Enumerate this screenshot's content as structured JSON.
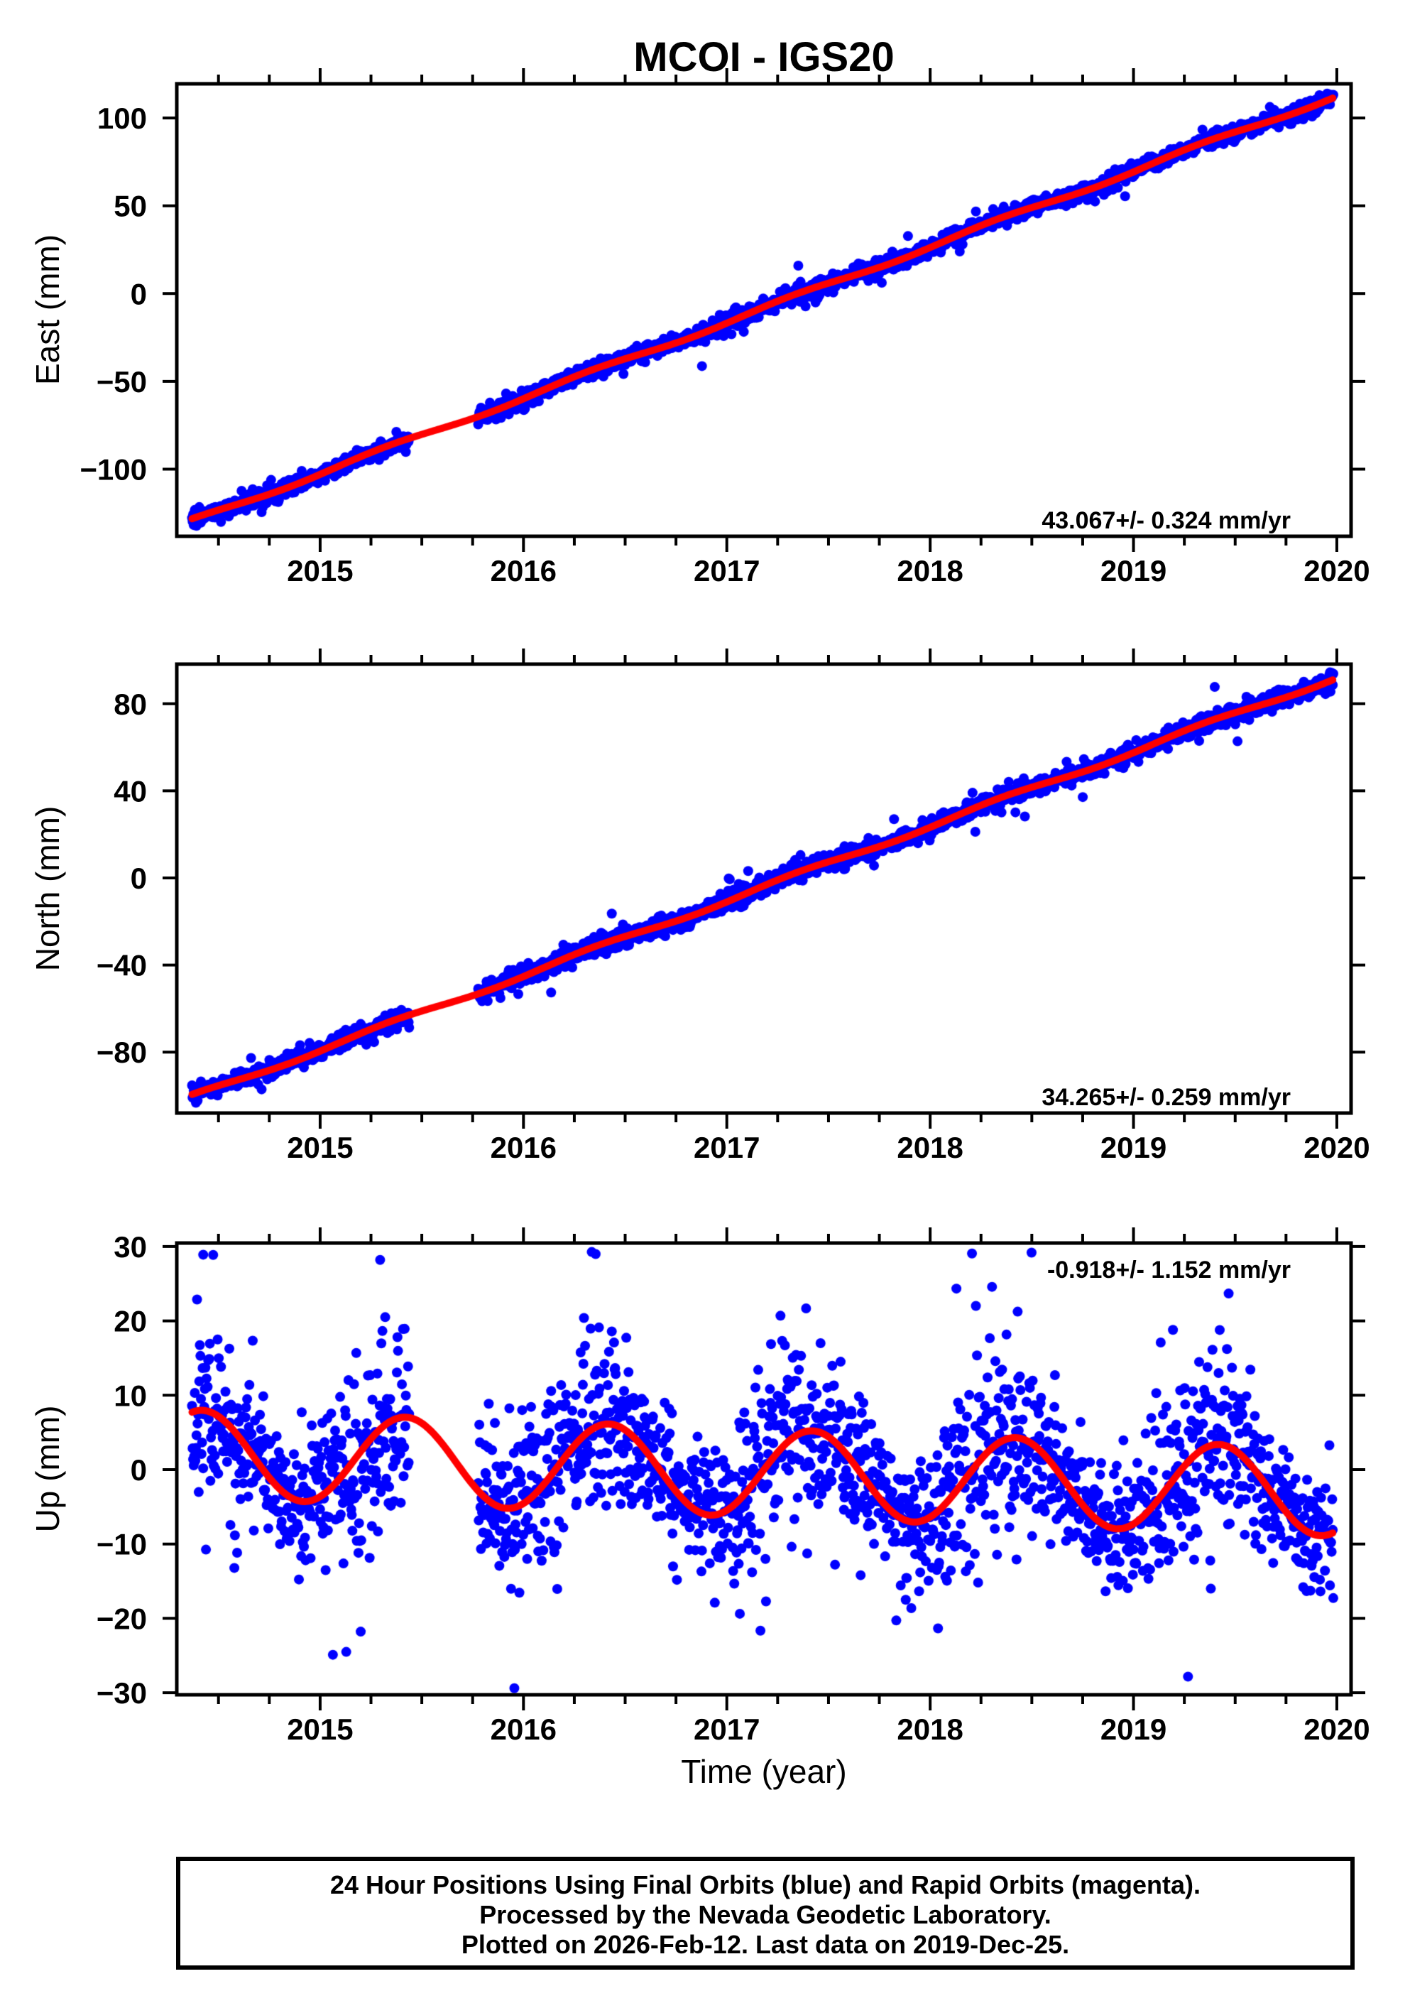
{
  "title": "MCOI - IGS20",
  "colors": {
    "final_orbit_points": "#0000ff",
    "rapid_orbit_points": "#ff00ff",
    "model_curve": "#ff0000",
    "axis": "#000000",
    "background": "#ffffff"
  },
  "x_axis": {
    "label": "Time (year)",
    "tick_values": [
      2015,
      2016,
      2017,
      2018,
      2019,
      2020
    ],
    "tick_labels": [
      "2015",
      "2016",
      "2017",
      "2018",
      "2019",
      "2020"
    ],
    "minor_step": 0.25,
    "range": [
      2014.295,
      2020.07
    ]
  },
  "footer": {
    "lines": [
      "24 Hour Positions Using Final Orbits (blue) and Rapid Orbits (magenta).",
      "Processed by the Nevada Geodetic Laboratory.",
      "Plotted on 2026-Feb-12. Last data on 2019-Dec-25."
    ]
  },
  "chart_data": [
    {
      "type": "scatter",
      "component": "East",
      "ylabel": "East (mm)",
      "rate_label": "43.067+/- 0.324 mm/yr",
      "rate_mm_per_yr": 43.067,
      "rate_sigma_mm_per_yr": 0.324,
      "yticks": [
        100,
        50,
        0,
        -50,
        -100
      ],
      "ytick_labels": [
        "100",
        "50",
        "0",
        "−50",
        "−100"
      ],
      "ylim": [
        -138.3,
        119.4
      ],
      "data_start": 2014.37,
      "data_end": 2019.984,
      "gap": [
        2015.44,
        2015.775
      ],
      "model": {
        "value_at_start": -129.5,
        "slope": 43.067,
        "seasonal_amp": 1.3,
        "seasonal_phase": 0.33,
        "noise_sigma": 2.3
      },
      "values_at_year_ticks": {
        "2015": -103.0,
        "2016": -59.9,
        "2017": -16.8,
        "2018": 26.2,
        "2019": 69.3
      },
      "end_value": 111.5
    },
    {
      "type": "scatter",
      "component": "North",
      "ylabel": "North (mm)",
      "rate_label": "34.265+/- 0.259 mm/yr",
      "rate_mm_per_yr": 34.265,
      "rate_sigma_mm_per_yr": 0.259,
      "yticks": [
        80,
        40,
        0,
        -40,
        -80
      ],
      "ytick_labels": [
        "80",
        "40",
        "0",
        "−40",
        "−80"
      ],
      "ylim": [
        -108.0,
        98.2
      ],
      "data_start": 2014.37,
      "data_end": 2019.984,
      "gap": [
        2015.44,
        2015.775
      ],
      "model": {
        "value_at_start": -100.5,
        "slope": 34.265,
        "seasonal_amp": 1.1,
        "seasonal_phase": 0.35,
        "noise_sigma": 2.1
      },
      "values_at_year_ticks": {
        "2015": -79.5,
        "2016": -45.3,
        "2017": -11.0,
        "2018": 23.2,
        "2019": 57.5
      },
      "end_value": 91.1
    },
    {
      "type": "scatter",
      "component": "Up",
      "ylabel": "Up (mm)",
      "rate_label": "-0.918+/- 1.152 mm/yr",
      "rate_mm_per_yr": -0.918,
      "rate_sigma_mm_per_yr": 1.152,
      "yticks": [
        30,
        20,
        10,
        0,
        -10,
        -20,
        -30
      ],
      "ytick_labels": [
        "30",
        "20",
        "10",
        "0",
        "−10",
        "−20",
        "−30"
      ],
      "ylim": [
        -30.3,
        30.5
      ],
      "data_start": 2014.37,
      "data_end": 2019.984,
      "gap": [
        2015.44,
        2015.775
      ],
      "model": {
        "value_at_2017": -0.3,
        "slope": -0.918,
        "seasonal_amp": 5.9,
        "seasonal_peak_phase": 0.42,
        "noise_sigma_base": 5.4,
        "noise_sigma_seasonal": 1.6,
        "noise_sigma_phase": 0.28
      },
      "curve_peaks": {
        "2014.42": 7.8,
        "2015.42": 7.0,
        "2016.42": 6.0,
        "2017.42": 5.1,
        "2018.42": 4.2,
        "2019.42": 3.3
      },
      "curve_troughs": {
        "2014.92": -4.3,
        "2015.92": -5.2,
        "2016.92": -6.1,
        "2017.92": -7.0,
        "2018.92": -7.9,
        "2019.92": -8.8
      },
      "notable_points": [
        {
          "t": 2014.425,
          "v": 28.9
        },
        {
          "t": 2015.295,
          "v": 28.2
        },
        {
          "t": 2015.955,
          "v": -29.4
        }
      ],
      "clip_range": [
        -29.6,
        29.3
      ]
    }
  ]
}
